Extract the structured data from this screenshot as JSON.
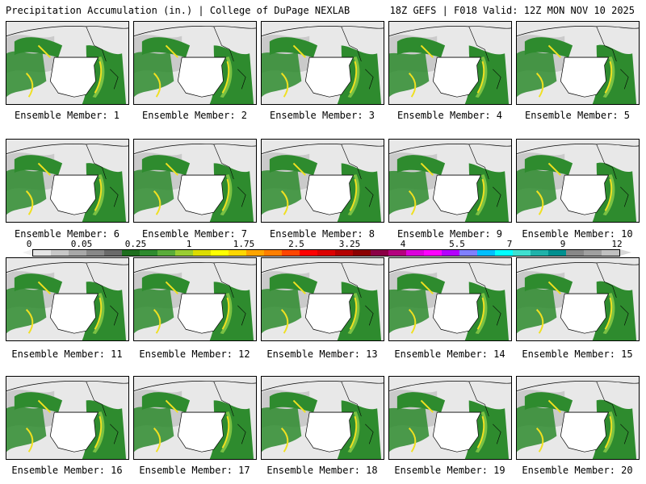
{
  "header": {
    "left_title": "Precipitation Accumulation (in.) | College of DuPage NEXLAB",
    "right_title": "18Z GEFS | F018 Valid: 12Z MON NOV 10 2025"
  },
  "caption_prefix": "Ensemble Member: ",
  "members": [
    {
      "label": "Ensemble Member: 1"
    },
    {
      "label": "Ensemble Member: 2"
    },
    {
      "label": "Ensemble Member: 3"
    },
    {
      "label": "Ensemble Member: 4"
    },
    {
      "label": "Ensemble Member: 5"
    },
    {
      "label": "Ensemble Member: 6"
    },
    {
      "label": "Ensemble Member: 7"
    },
    {
      "label": "Ensemble Member: 8"
    },
    {
      "label": "Ensemble Member: 9"
    },
    {
      "label": "Ensemble Member: 10"
    },
    {
      "label": "Ensemble Member: 11"
    },
    {
      "label": "Ensemble Member: 12"
    },
    {
      "label": "Ensemble Member: 13"
    },
    {
      "label": "Ensemble Member: 14"
    },
    {
      "label": "Ensemble Member: 15"
    },
    {
      "label": "Ensemble Member: 16"
    },
    {
      "label": "Ensemble Member: 17"
    },
    {
      "label": "Ensemble Member: 18"
    },
    {
      "label": "Ensemble Member: 19"
    },
    {
      "label": "Ensemble Member: 20"
    }
  ],
  "color_scale": {
    "tick_labels": [
      "0",
      "0.05",
      "0.25",
      "1",
      "1.75",
      "2.5",
      "3.25",
      "4",
      "5.5",
      "7",
      "9",
      "12"
    ],
    "colors": [
      "#e6e6e6",
      "#c8c8c8",
      "#a8a8a8",
      "#888888",
      "#6a6a6a",
      "#1e6e1e",
      "#2e8b2e",
      "#5aac3a",
      "#9acd32",
      "#dcdc00",
      "#ffff00",
      "#ffd700",
      "#ffa500",
      "#ff7f00",
      "#ff4500",
      "#ff0000",
      "#dc0000",
      "#b40000",
      "#8b0000",
      "#8b0045",
      "#b4007f",
      "#dc00dc",
      "#ff00ff",
      "#b400ff",
      "#8080ff",
      "#00bfff",
      "#00ffff",
      "#40e0d0",
      "#20b2aa",
      "#009090",
      "#888888",
      "#a0a0a0",
      "#c0c0c0"
    ]
  },
  "map_colors": {
    "land_light": "#e8e8e8",
    "gray_precip": "#bdbdbd",
    "green_precip": "#2e8b2e",
    "light_green": "#7ac143",
    "yellow_precip": "#f0e020",
    "border": "#000000"
  }
}
